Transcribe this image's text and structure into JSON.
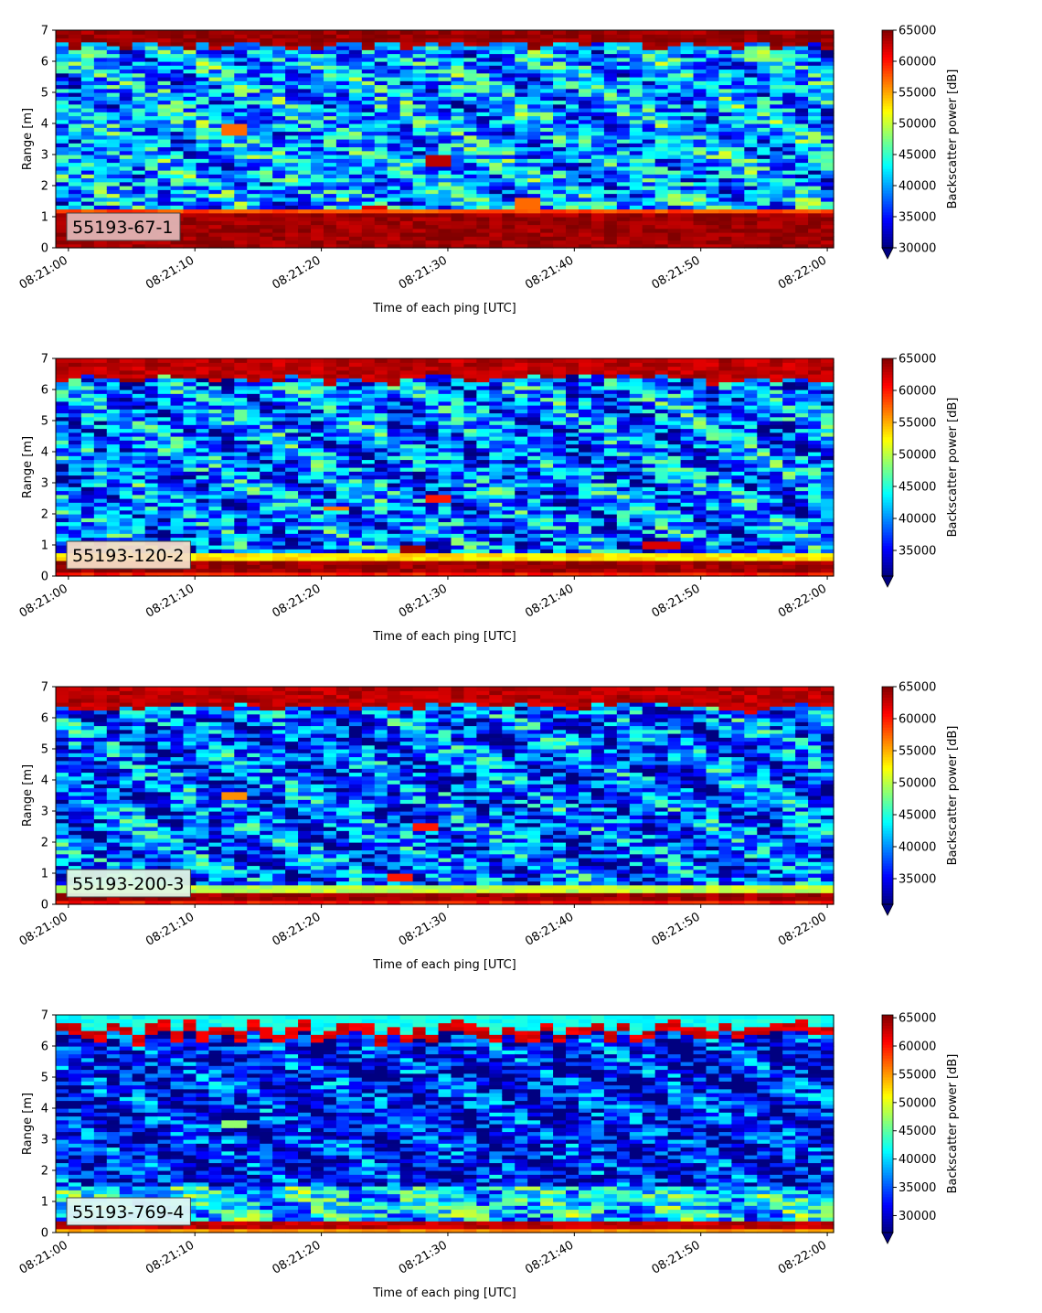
{
  "chart_data": [
    {
      "type": "heatmap",
      "label": "55193-67-1",
      "xlabel": "Time of each ping [UTC]",
      "ylabel": "Range [m]",
      "xticks": [
        "08:21:00",
        "08:21:10",
        "08:21:20",
        "08:21:30",
        "08:21:40",
        "08:21:50",
        "08:22:00"
      ],
      "x_range": [
        "08:20:59",
        "08:22:00.5"
      ],
      "ylim": [
        0,
        7
      ],
      "yticks": [
        0,
        1,
        2,
        3,
        4,
        5,
        6,
        7
      ],
      "colorbar": {
        "label": "Backscatter power [dB]",
        "min": 30000,
        "max": 65000,
        "ticks": [
          30000,
          35000,
          40000,
          45000,
          50000,
          55000,
          60000,
          65000
        ],
        "extend": "min"
      },
      "bands": [
        {
          "range": [
            0.0,
            0.2
          ],
          "value": 64000
        },
        {
          "range": [
            0.2,
            1.1
          ],
          "value": 64000
        },
        {
          "range": [
            1.1,
            1.25
          ],
          "value": 58000
        },
        {
          "range": [
            1.25,
            6.4
          ],
          "value": 40000,
          "note": "mixed"
        },
        {
          "range": [
            6.6,
            7.0
          ],
          "value": 64000
        }
      ],
      "features": [
        {
          "time": "08:21:29",
          "range": [
            2.6,
            3.0
          ],
          "value": 63000
        },
        {
          "time": "08:21:36",
          "range": [
            1.3,
            1.6
          ],
          "value": 57000
        },
        {
          "time": "08:21:13",
          "range": [
            3.6,
            4.0
          ],
          "value": 57000
        },
        {
          "time": "08:21:24",
          "range": [
            1.2,
            1.4
          ],
          "value": 62000
        }
      ]
    },
    {
      "type": "heatmap",
      "label": "55193-120-2",
      "xlabel": "Time of each ping [UTC]",
      "ylabel": "Range [m]",
      "xticks": [
        "08:21:00",
        "08:21:10",
        "08:21:20",
        "08:21:30",
        "08:21:40",
        "08:21:50",
        "08:22:00"
      ],
      "x_range": [
        "08:20:59",
        "08:22:00.5"
      ],
      "ylim": [
        0,
        7
      ],
      "yticks": [
        0,
        1,
        2,
        3,
        4,
        5,
        6,
        7
      ],
      "colorbar": {
        "label": "Backscatter power [dB]",
        "min": 31000,
        "max": 65000,
        "ticks": [
          35000,
          40000,
          45000,
          50000,
          55000,
          60000,
          65000
        ],
        "extend": "min"
      },
      "bands": [
        {
          "range": [
            0.0,
            0.1
          ],
          "value": 60000
        },
        {
          "range": [
            0.1,
            0.5
          ],
          "value": 64000
        },
        {
          "range": [
            0.5,
            0.8
          ],
          "value": 53000
        },
        {
          "range": [
            0.8,
            6.3
          ],
          "value": 39000,
          "note": "mixed"
        },
        {
          "range": [
            6.4,
            7.0
          ],
          "value": 63000
        }
      ],
      "features": [
        {
          "time": "08:21:29",
          "range": [
            2.4,
            2.6
          ],
          "value": 60000
        },
        {
          "time": "08:21:27",
          "range": [
            0.8,
            1.0
          ],
          "value": 64000
        },
        {
          "time": "08:21:47",
          "range": [
            0.9,
            1.1
          ],
          "value": 62000
        },
        {
          "time": "08:21:21",
          "range": [
            2.1,
            2.3
          ],
          "value": 57000
        }
      ]
    },
    {
      "type": "heatmap",
      "label": "55193-200-3",
      "xlabel": "Time of each ping [UTC]",
      "ylabel": "Range [m]",
      "xticks": [
        "08:21:00",
        "08:21:10",
        "08:21:20",
        "08:21:30",
        "08:21:40",
        "08:21:50",
        "08:22:00"
      ],
      "x_range": [
        "08:20:59",
        "08:22:00.5"
      ],
      "ylim": [
        0,
        7
      ],
      "yticks": [
        0,
        1,
        2,
        3,
        4,
        5,
        6,
        7
      ],
      "colorbar": {
        "label": "Backscatter power [dB]",
        "min": 31000,
        "max": 65000,
        "ticks": [
          35000,
          40000,
          45000,
          50000,
          55000,
          60000,
          65000
        ],
        "extend": "min"
      },
      "bands": [
        {
          "range": [
            0.0,
            0.15
          ],
          "value": 60000
        },
        {
          "range": [
            0.15,
            0.4
          ],
          "value": 64000
        },
        {
          "range": [
            0.4,
            0.6
          ],
          "value": 50000
        },
        {
          "range": [
            0.6,
            6.3
          ],
          "value": 38000,
          "note": "mixed"
        },
        {
          "range": [
            6.4,
            7.0
          ],
          "value": 63000
        }
      ],
      "features": [
        {
          "time": "08:21:28",
          "range": [
            2.4,
            2.6
          ],
          "value": 60000
        },
        {
          "time": "08:21:13",
          "range": [
            3.4,
            3.6
          ],
          "value": 56000
        },
        {
          "time": "08:21:26",
          "range": [
            0.8,
            1.0
          ],
          "value": 60000
        }
      ]
    },
    {
      "type": "heatmap",
      "label": "55193-769-4",
      "xlabel": "Time of each ping [UTC]",
      "ylabel": "Range [m]",
      "xticks": [
        "08:21:00",
        "08:21:10",
        "08:21:20",
        "08:21:30",
        "08:21:40",
        "08:21:50",
        "08:22:00"
      ],
      "x_range": [
        "08:20:59",
        "08:22:00.5"
      ],
      "ylim": [
        0,
        7
      ],
      "yticks": [
        0,
        1,
        2,
        3,
        4,
        5,
        6,
        7
      ],
      "colorbar": {
        "label": "Backscatter power [dB]",
        "min": 27000,
        "max": 65500,
        "ticks": [
          30000,
          35000,
          40000,
          45000,
          50000,
          55000,
          60000,
          65000
        ],
        "extend": "min"
      },
      "bands": [
        {
          "range": [
            0.0,
            0.15
          ],
          "value": 55000
        },
        {
          "range": [
            0.15,
            0.35
          ],
          "value": 63000
        },
        {
          "range": [
            0.35,
            1.5
          ],
          "value": 40000,
          "note": "mixed"
        },
        {
          "range": [
            1.5,
            6.3
          ],
          "value": 32000,
          "note": "mixed"
        },
        {
          "range": [
            6.3,
            6.6
          ],
          "value": 62000
        },
        {
          "range": [
            6.6,
            7.0
          ],
          "value": 42000
        }
      ],
      "features": [
        {
          "time": "08:21:13",
          "range": [
            3.4,
            3.6
          ],
          "value": 47000
        }
      ]
    }
  ]
}
